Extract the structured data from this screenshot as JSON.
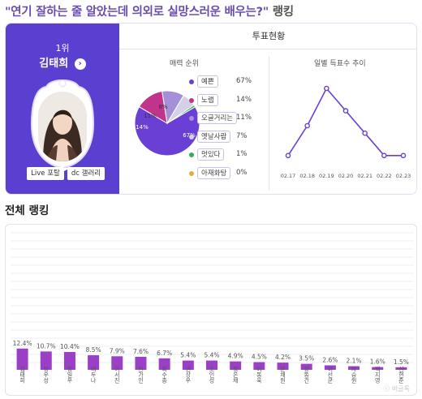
{
  "header": {
    "title": "\"연기 잘하는 줄 알았는데 의외로 실망스러운 배우는?\"",
    "title_suffix": " 랭킹"
  },
  "winner": {
    "rank_label": "1위",
    "name": "김태희",
    "arrow_icon": "chevron-right-icon",
    "buttons": {
      "live": "Live 포탈",
      "dc": "dc 갤러리"
    }
  },
  "vote_panel": {
    "header": "투표현황",
    "charm_title": "매력 순위",
    "daily_title": "일별 득표수 추이"
  },
  "charm_legend": [
    {
      "label": "예쁜",
      "pct": "67%",
      "color": "#6a3fd4"
    },
    {
      "label": "노랩",
      "pct": "14%",
      "color": "#c0348b"
    },
    {
      "label": "오글거리는",
      "pct": "11%",
      "color": "#a48fd8"
    },
    {
      "label": "옛날사람",
      "pct": "7%",
      "color": "#d5d0e6"
    },
    {
      "label": "멋있다",
      "pct": "1%",
      "color": "#33b05a"
    },
    {
      "label": "아재화탕",
      "pct": "0%",
      "color": "#d9b23c"
    }
  ],
  "pie_labels": {
    "big": "67%",
    "mid": "14%",
    "small": "11%",
    "tiny": "8%"
  },
  "section": {
    "title": "전체 랭킹"
  },
  "chart_data": [
    {
      "type": "pie",
      "title": "매력 순위",
      "categories": [
        "예쁜",
        "노랩",
        "오글거리는",
        "옛날사람",
        "멋있다",
        "아재화탕"
      ],
      "values": [
        67,
        14,
        11,
        7,
        1,
        0
      ]
    },
    {
      "type": "line",
      "title": "일별 득표수 추이",
      "x": [
        "02.17",
        "02.18",
        "02.19",
        "02.20",
        "02.21",
        "02.22",
        "02.23"
      ],
      "values": [
        1,
        5,
        10,
        7,
        4,
        1,
        1
      ],
      "grid": false
    },
    {
      "type": "bar",
      "title": "전체 랭킹",
      "categories": [
        "김태희",
        "정우성",
        "정일우",
        "배두나",
        "이서진",
        "한가인",
        "최수종",
        "권상우",
        "조인성",
        "정은채",
        "이동욱",
        "문채원",
        "장동건",
        "이선균",
        "차승원",
        "백지영",
        "신현준"
      ],
      "values": [
        12.4,
        10.7,
        10.4,
        8.5,
        7.9,
        7.6,
        6.7,
        5.4,
        5.4,
        4.9,
        4.5,
        4.2,
        3.5,
        2.6,
        2.1,
        1.6,
        1.5
      ],
      "value_labels": [
        "12.4%",
        "10.7%",
        "10.4%",
        "8.5%",
        "7.9%",
        "7.6%",
        "6.7%",
        "5.4%",
        "5.4%",
        "4.9%",
        "4.5%",
        "4.2%",
        "3.5%",
        "2.6%",
        "2.1%",
        "1.6%",
        "1.5%"
      ],
      "grid": true,
      "bar_color": "#9b3fc7"
    }
  ],
  "watermark": "ⓒ 비글톡"
}
